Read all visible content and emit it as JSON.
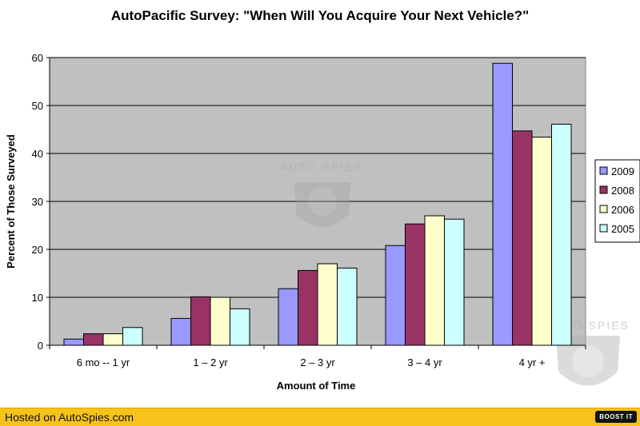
{
  "chart_data": {
    "type": "bar",
    "title": "AutoPacific Survey: \"When Will You Acquire Your Next Vehicle?\"",
    "xlabel": "Amount of Time",
    "ylabel": "Percent of Those Surveyed",
    "categories": [
      "6 mo -- 1 yr",
      "1 – 2 yr",
      "2 – 3 yr",
      "3 – 4 yr",
      "4 yr +"
    ],
    "series": [
      {
        "name": "2009",
        "color": "#9999ff",
        "values": [
          1.3,
          5.6,
          11.8,
          20.8,
          58.8
        ]
      },
      {
        "name": "2008",
        "color": "#993366",
        "values": [
          2.4,
          10.1,
          15.6,
          25.3,
          44.7
        ]
      },
      {
        "name": "2006",
        "color": "#ffffcc",
        "values": [
          2.4,
          10.0,
          17.0,
          27.0,
          43.4
        ]
      },
      {
        "name": "2005",
        "color": "#ccffff",
        "values": [
          3.7,
          7.6,
          16.1,
          26.3,
          46.1
        ]
      }
    ],
    "ylim": [
      0,
      60
    ],
    "yticks": [
      0,
      10,
      20,
      30,
      40,
      50,
      60
    ],
    "grid": true,
    "plot_background": "#c0c0c0",
    "legend_position": "right"
  },
  "watermark": {
    "text": "AUTO SPIES"
  },
  "footer": {
    "text": "Hosted on AutoSpies.com",
    "button_label": "BOOST IT",
    "background": "#f7c21a"
  }
}
